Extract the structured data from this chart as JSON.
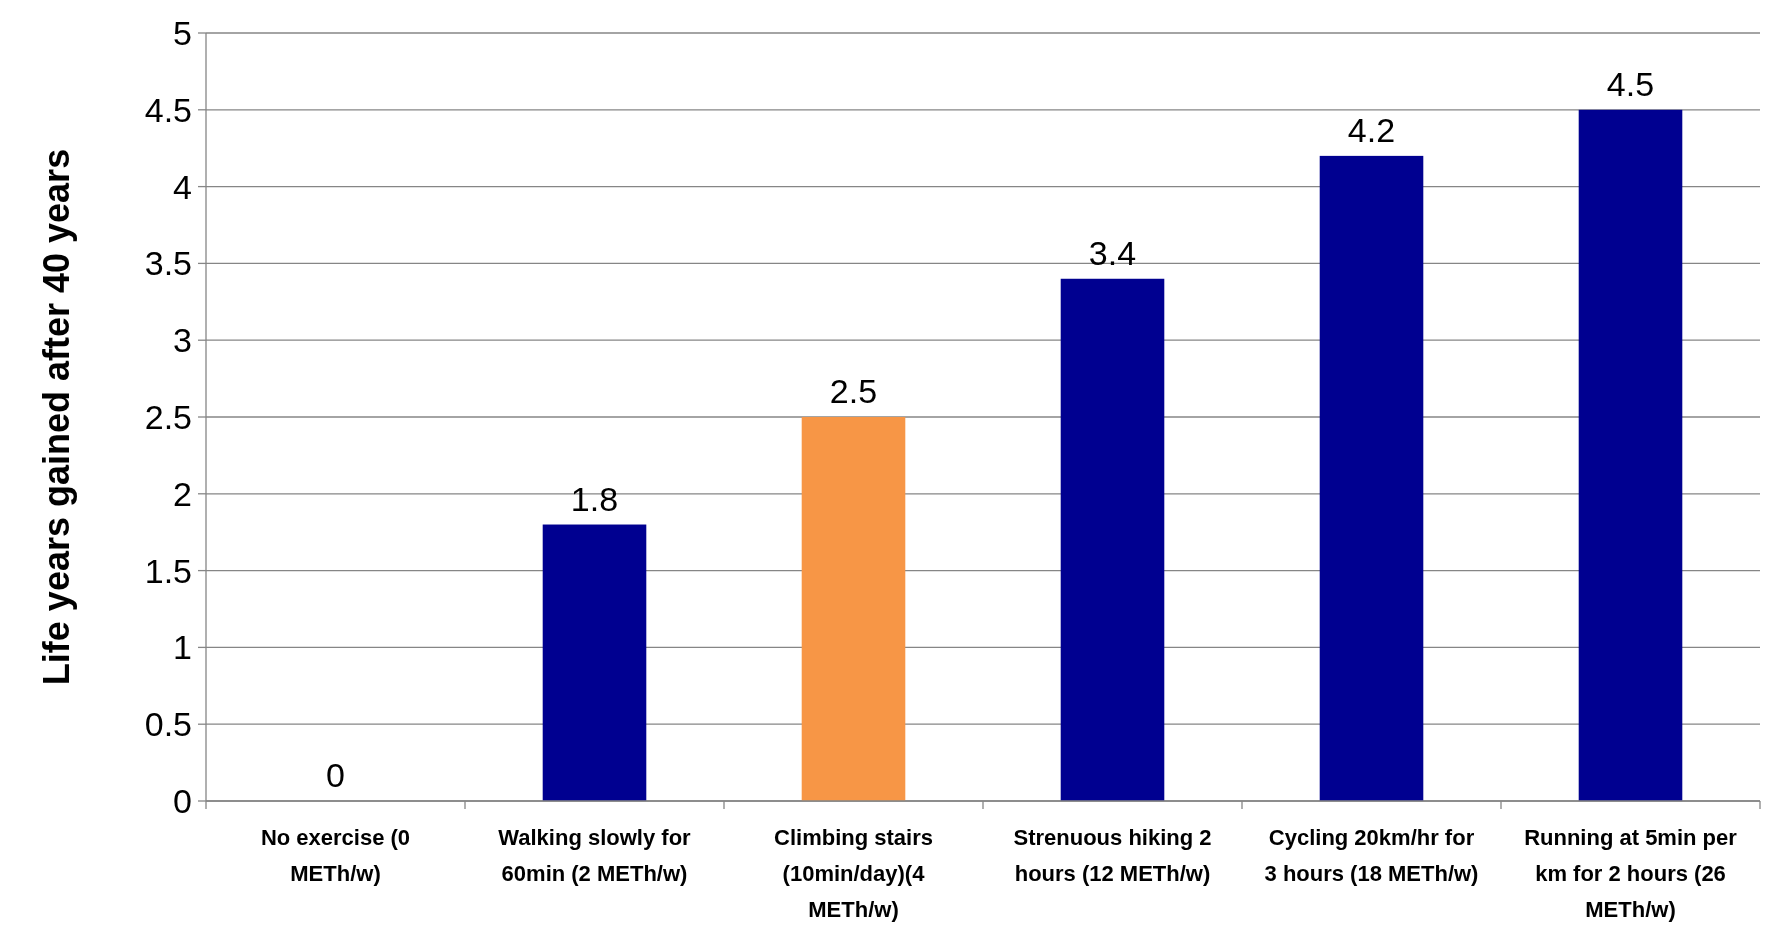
{
  "chart_data": {
    "type": "bar",
    "ylabel": "Life years gained after 40 years",
    "categories": [
      "No exercise (0 METh/w)",
      "Walking slowly for 60min (2 METh/w)",
      "Climbing stairs (10min/day)(4 METh/w)",
      "Strenuous hiking 2 hours (12 METh/w)",
      "Cycling 20km/hr for 3 hours (18 METh/w)",
      "Running at 5min per km for 2 hours (26 METh/w)"
    ],
    "values": [
      0,
      1.8,
      2.5,
      3.4,
      4.2,
      4.5
    ],
    "colors": [
      "#000090",
      "#000090",
      "#f79646",
      "#000090",
      "#000090",
      "#000090"
    ],
    "ylim": [
      0,
      5
    ],
    "yticks": [
      0,
      0.5,
      1,
      1.5,
      2,
      2.5,
      3,
      3.5,
      4,
      4.5,
      5
    ],
    "grid": "y",
    "data_labels": true
  }
}
